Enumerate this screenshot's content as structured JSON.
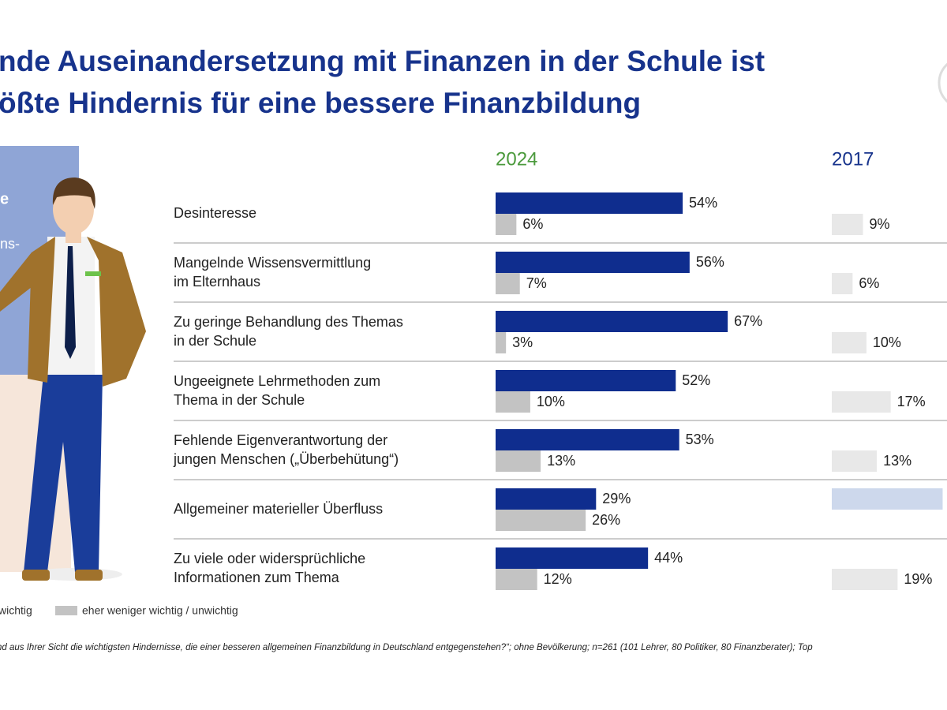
{
  "header": {
    "title_lines": [
      "nde Auseinandersetzung mit Finanzen in der Schule ist",
      "ößte Hindernis für eine bessere Finanzbildung"
    ]
  },
  "side_panel_text": [
    "e",
    "ns-"
  ],
  "chart_data": {
    "type": "bar",
    "categories": [
      [
        "Desinteresse"
      ],
      [
        "Mangelnde Wissensvermittlung",
        "im Elternhaus"
      ],
      [
        "Zu geringe Behandlung des Themas",
        "in der Schule"
      ],
      [
        "Ungeeignete Lehrmethoden zum",
        "Thema in der Schule"
      ],
      [
        "Fehlende Eigenverantwortung der",
        "jungen Menschen („Überbehütung“)"
      ],
      [
        "Allgemeiner materieller Überfluss"
      ],
      [
        "Zu viele oder widersprüchliche",
        "Informationen zum Thema"
      ]
    ],
    "panels": [
      {
        "year": "2024",
        "year_color": "#4b9a3c",
        "series": [
          {
            "name": "wichtig",
            "color": "#0f2d8e",
            "values": [
              54,
              56,
              67,
              52,
              53,
              29,
              44
            ],
            "value_labels": [
              "54%",
              "56%",
              "67%",
              "52%",
              "53%",
              "29%",
              "44%"
            ]
          },
          {
            "name": "eher weniger wichtig / unwichtig",
            "color": "#c3c3c3",
            "values": [
              6,
              7,
              3,
              10,
              13,
              26,
              12
            ],
            "value_labels": [
              "6%",
              "7%",
              "3%",
              "10%",
              "13%",
              "26%",
              "12%"
            ]
          }
        ]
      },
      {
        "year": "2017",
        "year_color": "#17338c",
        "series": [
          {
            "color": "#cdd8ec",
            "values": [
              null,
              null,
              null,
              null,
              null,
              32,
              null
            ]
          },
          {
            "color": "#e8e8e8",
            "values": [
              9,
              6,
              10,
              17,
              13,
              null,
              19
            ],
            "value_labels": [
              "9%",
              "6%",
              "10%",
              "17%",
              "13%",
              null,
              "19%"
            ]
          }
        ]
      }
    ]
  },
  "footnote": "nd aus Ihrer Sicht die wichtigsten Hindernisse, die einer besseren allgemeinen Finanzbildung in Deutschland entgegenstehen?“; ohne Bevölkerung; n=261 (101 Lehrer, 80 Politiker,  80 Finanzberater); Top"
}
